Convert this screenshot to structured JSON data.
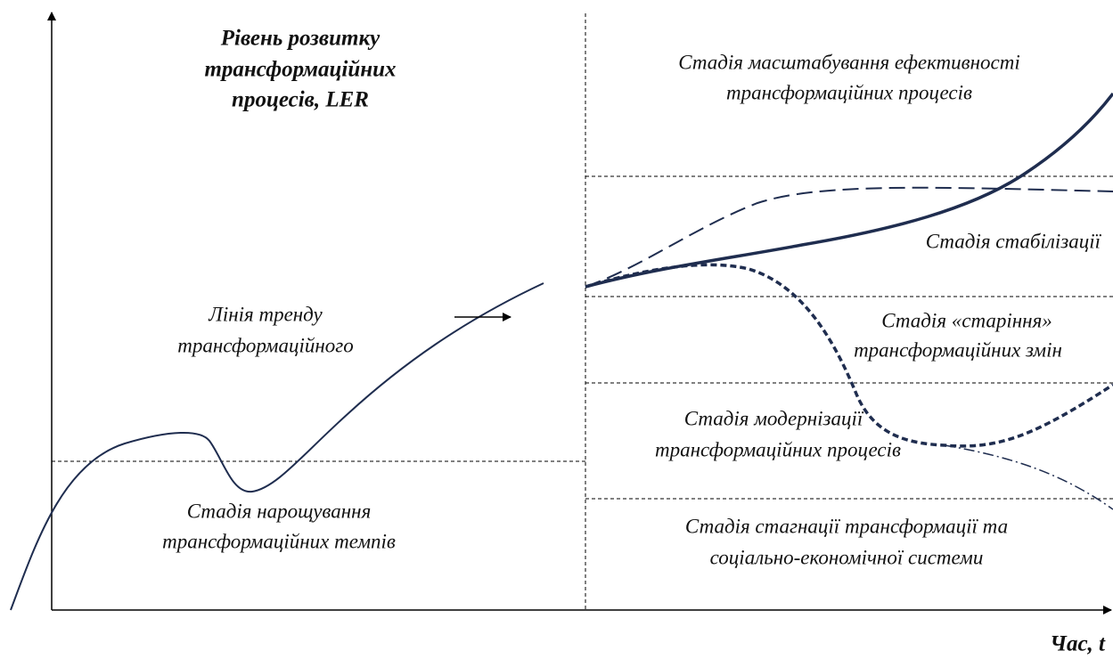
{
  "axes": {
    "y_label": [
      "Рівень розвитку",
      "трансформаційних",
      "процесів, LER"
    ],
    "x_label": "Час, t"
  },
  "labels": {
    "trend": [
      "Лінія тренду",
      "трансформаційного"
    ],
    "growth": [
      "Стадія  нарощування",
      "трансформаційних темпів"
    ],
    "scaling": [
      "Стадія масштабування ефективності",
      "трансформаційних процесів"
    ],
    "stabilization": [
      "Стадія стабілізації"
    ],
    "aging": [
      "Стадія «старіння»",
      "трансформаційних змін"
    ],
    "modernization": [
      "Стадія модернізації",
      "трансформаційних процесів"
    ],
    "stagnation": [
      "Стадія стагнації трансформації та",
      "соціально-економічної системи"
    ]
  }
}
